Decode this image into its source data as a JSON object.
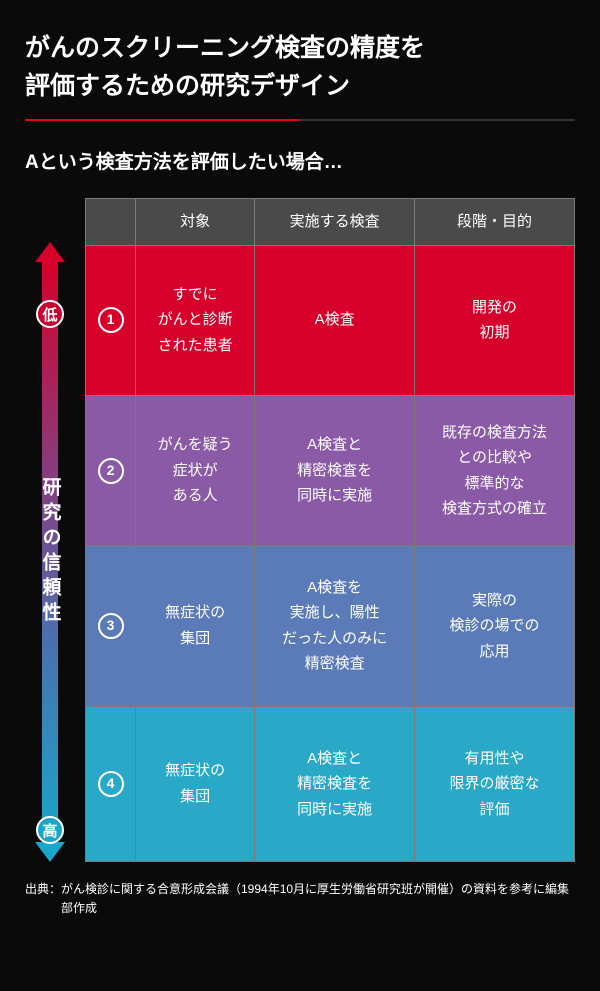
{
  "title_line1": "がんのスクリーニング検査の精度を",
  "title_line2": "評価するための研究デザイン",
  "subtitle": "Aという検査方法を評価したい場合…",
  "axis": {
    "low": "低",
    "high": "高",
    "label": "研究の信頼性"
  },
  "headers": {
    "col1": "対象",
    "col2": "実施する検査",
    "col3": "段階・目的"
  },
  "rows": [
    {
      "num": "1",
      "target": "すでに\nがんと診断\nされた患者",
      "exam": "A検査",
      "purpose": "開発の\n初期",
      "bg": "#d6002a"
    },
    {
      "num": "2",
      "target": "がんを疑う\n症状が\nある人",
      "exam": "A検査と\n精密検査を\n同時に実施",
      "purpose": "既存の検査方法\nとの比較や\n標準的な\n検査方式の確立",
      "bg": "#8a5aa6"
    },
    {
      "num": "3",
      "target": "無症状の\n集団",
      "exam": "A検査を\n実施し、陽性\nだった人のみに\n精密検査",
      "purpose": "実際の\n検診の場での\n応用",
      "bg": "#5a7ab8"
    },
    {
      "num": "4",
      "target": "無症状の\n集団",
      "exam": "A検査と\n精密検査を\n同時に実施",
      "purpose": "有用性や\n限界の厳密な\n評価",
      "bg": "#2aa8c8"
    }
  ],
  "footnote": "出典：がん検診に関する合意形成会議（1994年10月に厚生労働省研究班が開催）の資料を参考に編集部作成",
  "colors": {
    "background": "#0a0a0a",
    "header_bg": "#4a4a4a",
    "border": "#7a7a7a",
    "text": "#ffffff",
    "accent_red": "#e60012"
  }
}
